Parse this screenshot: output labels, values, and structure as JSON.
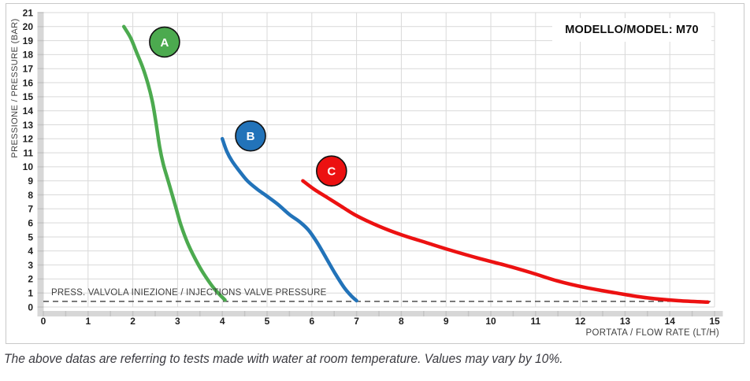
{
  "page": {
    "caption": "The above datas are referring to tests made with water at room temperature. Values may vary by 10%."
  },
  "chart_data": {
    "type": "line",
    "title": "MODELLO/MODEL: M70",
    "xlabel": "PORTATA / FLOW RATE (LT/H)",
    "ylabel": "PRESSIONE / PRESSURE (BAR)",
    "xlim": [
      0,
      15
    ],
    "ylim": [
      0,
      21
    ],
    "xstep": 1,
    "ystep": 1,
    "grid": true,
    "grid_color": "#d9d9d9",
    "band_color": "#d7d7d7",
    "band_tick_color": "#c3c3c3",
    "tick_label_color": "#1f1f1f",
    "annotation": {
      "label": "PRESS. VALVOLA INIEZIONE / INJECTIONS VALVE PRESSURE",
      "y": 0.4,
      "style": "dashed",
      "color": "#2b2b2b"
    },
    "legend_position": "on-curve-bubbles",
    "series": [
      {
        "name": "A",
        "color": "#4CAA4F",
        "label_pos": {
          "x": 2.71,
          "y": 18.9
        },
        "points": [
          [
            1.8,
            20.0
          ],
          [
            1.95,
            19.2
          ],
          [
            2.08,
            18.2
          ],
          [
            2.22,
            17.1
          ],
          [
            2.34,
            15.9
          ],
          [
            2.44,
            14.6
          ],
          [
            2.52,
            13.1
          ],
          [
            2.6,
            11.4
          ],
          [
            2.68,
            10.2
          ],
          [
            2.78,
            9.1
          ],
          [
            2.88,
            8.0
          ],
          [
            2.97,
            7.0
          ],
          [
            3.08,
            5.8
          ],
          [
            3.22,
            4.6
          ],
          [
            3.4,
            3.4
          ],
          [
            3.58,
            2.4
          ],
          [
            3.82,
            1.3
          ],
          [
            4.06,
            0.5
          ]
        ]
      },
      {
        "name": "B",
        "color": "#2273B9",
        "label_pos": {
          "x": 4.63,
          "y": 12.2
        },
        "points": [
          [
            4.0,
            12.0
          ],
          [
            4.1,
            11.1
          ],
          [
            4.22,
            10.4
          ],
          [
            4.38,
            9.7
          ],
          [
            4.56,
            9.0
          ],
          [
            4.78,
            8.4
          ],
          [
            5.0,
            7.9
          ],
          [
            5.25,
            7.3
          ],
          [
            5.5,
            6.6
          ],
          [
            5.72,
            6.1
          ],
          [
            5.92,
            5.5
          ],
          [
            6.12,
            4.6
          ],
          [
            6.32,
            3.5
          ],
          [
            6.52,
            2.4
          ],
          [
            6.72,
            1.4
          ],
          [
            6.88,
            0.8
          ],
          [
            7.0,
            0.45
          ]
        ]
      },
      {
        "name": "C",
        "color": "#EC1111",
        "label_pos": {
          "x": 6.44,
          "y": 9.7
        },
        "points": [
          [
            5.8,
            9.0
          ],
          [
            6.05,
            8.4
          ],
          [
            6.35,
            7.8
          ],
          [
            6.65,
            7.2
          ],
          [
            6.95,
            6.6
          ],
          [
            7.3,
            6.05
          ],
          [
            7.7,
            5.5
          ],
          [
            8.1,
            5.05
          ],
          [
            8.6,
            4.55
          ],
          [
            9.1,
            4.05
          ],
          [
            9.7,
            3.5
          ],
          [
            10.3,
            3.0
          ],
          [
            10.9,
            2.45
          ],
          [
            11.5,
            1.85
          ],
          [
            12.1,
            1.4
          ],
          [
            12.8,
            1.0
          ],
          [
            13.5,
            0.65
          ],
          [
            14.2,
            0.45
          ],
          [
            14.85,
            0.35
          ]
        ]
      }
    ]
  }
}
